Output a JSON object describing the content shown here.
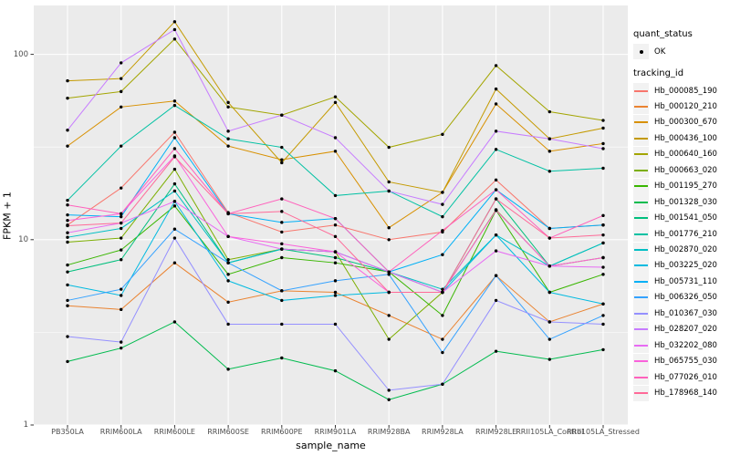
{
  "colors": {
    "page_bg": "#FFFFFF",
    "panel_bg": "#EBEBEB",
    "grid": "#FFFFFF",
    "legend_key_bg": "#F2F2F2",
    "tick_text": "#4D4D4D",
    "axis_title_text": "#000000",
    "tick_mark": "#333333",
    "point": "#000000"
  },
  "chart_data": {
    "type": "line",
    "title": "",
    "xlabel": "sample_name",
    "ylabel": "FPKM + 1",
    "y_scale": "log10",
    "ylim": [
      1,
      185
    ],
    "y_ticks": [
      1,
      10,
      100
    ],
    "y_minor_ticks": [
      3.1623,
      31.623
    ],
    "grid": true,
    "legend_position": "right",
    "x_categories": [
      "PB350LA",
      "RRIM600LA",
      "RRIM600LE",
      "RRIM600SE",
      "RRIM600PE",
      "RRIM901LA",
      "RRIM928BA",
      "RRIM928LA",
      "RRIM928LE",
      "RRII105LA_Control",
      "RRII105LA_Stressed"
    ],
    "legend": {
      "quant_status_title": "quant_status",
      "quant_status_items": [
        {
          "label": "OK",
          "marker": "black-point"
        }
      ],
      "tracking_id_title": "tracking_id"
    },
    "series": [
      {
        "name": "Hb_000085_190",
        "color": "#F8766D",
        "values": [
          12,
          19,
          38,
          14,
          11,
          12,
          10,
          11,
          21,
          11.5,
          12
        ]
      },
      {
        "name": "Hb_000120_210",
        "color": "#EA8331",
        "values": [
          4.4,
          4.2,
          7.5,
          4.6,
          5.3,
          5.2,
          3.9,
          2.9,
          6.4,
          3.6,
          4.5
        ]
      },
      {
        "name": "Hb_000300_670",
        "color": "#D89000",
        "values": [
          32,
          52,
          56,
          32,
          27,
          30,
          11.6,
          18,
          54,
          30,
          33
        ]
      },
      {
        "name": "Hb_000436_100",
        "color": "#C49A00",
        "values": [
          72,
          74,
          150,
          55,
          26,
          55,
          20.5,
          18,
          65,
          35,
          40
        ]
      },
      {
        "name": "Hb_000640_160",
        "color": "#A3A500",
        "values": [
          58,
          63,
          121,
          52,
          47,
          59,
          31.5,
          37,
          87,
          49,
          44
        ]
      },
      {
        "name": "Hb_000663_020",
        "color": "#7CAE00",
        "values": [
          9.7,
          10.2,
          24,
          7.8,
          8.9,
          8.6,
          2.9,
          5.2,
          14.5,
          7.2,
          8
        ]
      },
      {
        "name": "Hb_001195_270",
        "color": "#39B600",
        "values": [
          7.3,
          8.8,
          15.2,
          6.5,
          8,
          7.5,
          6.7,
          3.9,
          14.4,
          5.2,
          6.5
        ]
      },
      {
        "name": "Hb_001328_030",
        "color": "#00BB4E",
        "values": [
          2.2,
          2.6,
          3.6,
          2,
          2.3,
          1.96,
          1.37,
          1.66,
          2.5,
          2.26,
          2.55
        ]
      },
      {
        "name": "Hb_001541_050",
        "color": "#00BF7D",
        "values": [
          6.7,
          7.8,
          20,
          7.5,
          8.9,
          8,
          6.7,
          5.2,
          16.6,
          7.2,
          9.6
        ]
      },
      {
        "name": "Hb_001776_210",
        "color": "#00C1A3",
        "values": [
          16.3,
          32,
          53,
          35,
          31.5,
          17.3,
          18.3,
          13.3,
          30.7,
          23.4,
          24.3
        ]
      },
      {
        "name": "Hb_002870_020",
        "color": "#00BFC4",
        "values": [
          10.3,
          11.5,
          18.3,
          7.5,
          8.9,
          8.6,
          6.7,
          5.4,
          10.6,
          7.2,
          9.6
        ]
      },
      {
        "name": "Hb_003225_020",
        "color": "#00BAE0",
        "values": [
          5.7,
          5,
          16.1,
          6,
          4.7,
          5,
          5.2,
          5.2,
          10.6,
          5.2,
          4.5
        ]
      },
      {
        "name": "Hb_005731_110",
        "color": "#00B0F6",
        "values": [
          13.6,
          13.3,
          35.5,
          13.8,
          12.4,
          13,
          6.7,
          8.3,
          18.6,
          11.5,
          12
        ]
      },
      {
        "name": "Hb_006326_050",
        "color": "#35A2FF",
        "values": [
          4.7,
          5.4,
          11.4,
          7.5,
          5.3,
          6,
          6.5,
          2.46,
          6.4,
          2.9,
          3.9
        ]
      },
      {
        "name": "Hb_010367_030",
        "color": "#9590FF",
        "values": [
          3,
          2.8,
          10.2,
          3.5,
          3.5,
          3.5,
          1.54,
          1.66,
          4.7,
          3.6,
          3.5
        ]
      },
      {
        "name": "Hb_028207_020",
        "color": "#C77CFF",
        "values": [
          39,
          90,
          136,
          38.5,
          47,
          35.5,
          18.3,
          15.5,
          38.5,
          35,
          31
        ]
      },
      {
        "name": "Hb_032202_080",
        "color": "#E76BF3",
        "values": [
          10.9,
          12.3,
          16.1,
          10.4,
          8.9,
          8.6,
          6.7,
          5.2,
          8.7,
          7.2,
          7.1
        ]
      },
      {
        "name": "Hb_065755_030",
        "color": "#FA62DB",
        "values": [
          12.7,
          13.8,
          28.3,
          10.4,
          9.5,
          8.6,
          5.2,
          5.2,
          14.4,
          7.2,
          8
        ]
      },
      {
        "name": "Hb_077026_010",
        "color": "#FF62BC",
        "values": [
          15.4,
          13.8,
          31,
          13.8,
          16.6,
          13,
          6.7,
          11.2,
          18.6,
          10.2,
          13.5
        ]
      },
      {
        "name": "Hb_178968_140",
        "color": "#FF6A98",
        "values": [
          11.9,
          12.3,
          28,
          13.8,
          14.2,
          10.4,
          5.2,
          5.2,
          16.6,
          10.2,
          10.6
        ]
      }
    ]
  }
}
